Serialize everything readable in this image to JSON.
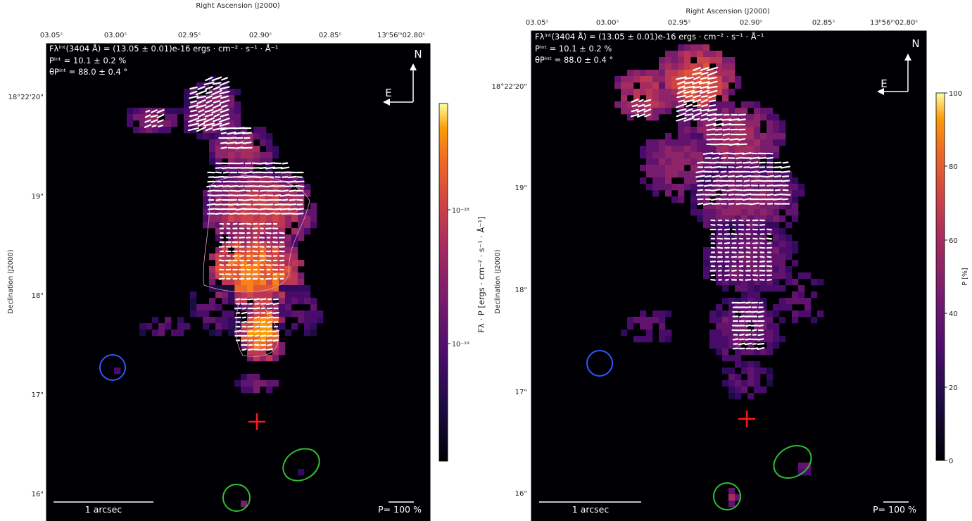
{
  "panels": [
    {
      "id": "left",
      "top_axis_label": "Right Ascension (J2000)",
      "left_axis_label": "Declination (J2000)",
      "ra_ticks": [
        "03.05ˢ",
        "03.00ˢ",
        "02.95ˢ",
        "02.90ˢ",
        "02.85ˢ",
        "13ʰ56ᵐ02.80ˢ"
      ],
      "dec_ticks": [
        "18°22'20\"",
        "19\"",
        "18\"",
        "17\"",
        "16\""
      ],
      "annotation": {
        "flux": "Fλⁱⁿᵗ(3404 Å) = (13.05 ± 0.01)e-16 ergs · cm⁻² · s⁻¹ · Å⁻¹",
        "pol": "Pⁱⁿᵗ = 10.1 ± 0.2 %",
        "angle": "θPⁱⁿᵗ = 88.0 ± 0.4 °"
      },
      "compass": {
        "north": "N",
        "east": "E"
      },
      "scalebar_label": "1 arcsec",
      "pol_scale_label": "P= 100 %",
      "colorbar": {
        "label": "Fλ · P [ergs · cm⁻² · s⁻¹ · Å⁻¹]",
        "scale": "log",
        "ticks": [
          "10⁻¹⁸",
          "10⁻¹⁹"
        ],
        "colormap": "inferno"
      }
    },
    {
      "id": "right",
      "top_axis_label": "Right Ascension (J2000)",
      "left_axis_label": "Declination (J2000)",
      "ra_ticks": [
        "03.05ˢ",
        "03.00ˢ",
        "02.95ˢ",
        "02.90ˢ",
        "02.85ˢ",
        "13ʰ56ᵐ02.80ˢ"
      ],
      "dec_ticks": [
        "18°22'20\"",
        "19\"",
        "18\"",
        "17\"",
        "16\""
      ],
      "annotation": {
        "flux": "Fλⁱⁿᵗ(3404 Å) = (13.05 ± 0.01)e-16 ergs · cm⁻² · s⁻¹ · Å⁻¹",
        "pol": "Pⁱⁿᵗ = 10.1 ± 0.2 %",
        "angle": "θPⁱⁿᵗ = 88.0 ± 0.4 °"
      },
      "compass": {
        "north": "N",
        "east": "E"
      },
      "scalebar_label": "1 arcsec",
      "pol_scale_label": "P= 100 %",
      "colorbar": {
        "label": "P [%]",
        "scale": "linear",
        "ticks": [
          "100",
          "80",
          "60",
          "40",
          "20",
          "0"
        ],
        "colormap": "inferno"
      }
    }
  ],
  "chart_data": [
    {
      "type": "heatmap",
      "description_of_map": "Polarized flux map with polarization vectors",
      "xlabel": "Right Ascension (J2000)",
      "ylabel": "Declination (J2000)",
      "colorbar_label": "Fλ · P [ergs · cm⁻² · s⁻¹ · Å⁻¹]",
      "colorbar_scale": "log",
      "colorbar_ticks": [
        "1e-18",
        "1e-19"
      ]
    },
    {
      "type": "heatmap",
      "description_of_map": "Polarization degree map with polarization vectors",
      "xlabel": "Right Ascension (J2000)",
      "ylabel": "Declination (J2000)",
      "colorbar_label": "P [%]",
      "colorbar_range": [
        0,
        100
      ],
      "colorbar_ticks": [
        0,
        20,
        40,
        60,
        80,
        100
      ]
    }
  ],
  "colors": {
    "background_map": "#000004",
    "blue_marker": "#2f57ff",
    "green_marker": "#2fbf2f",
    "cross_marker": "#ff1a1a",
    "vectors": "#ffffff"
  }
}
